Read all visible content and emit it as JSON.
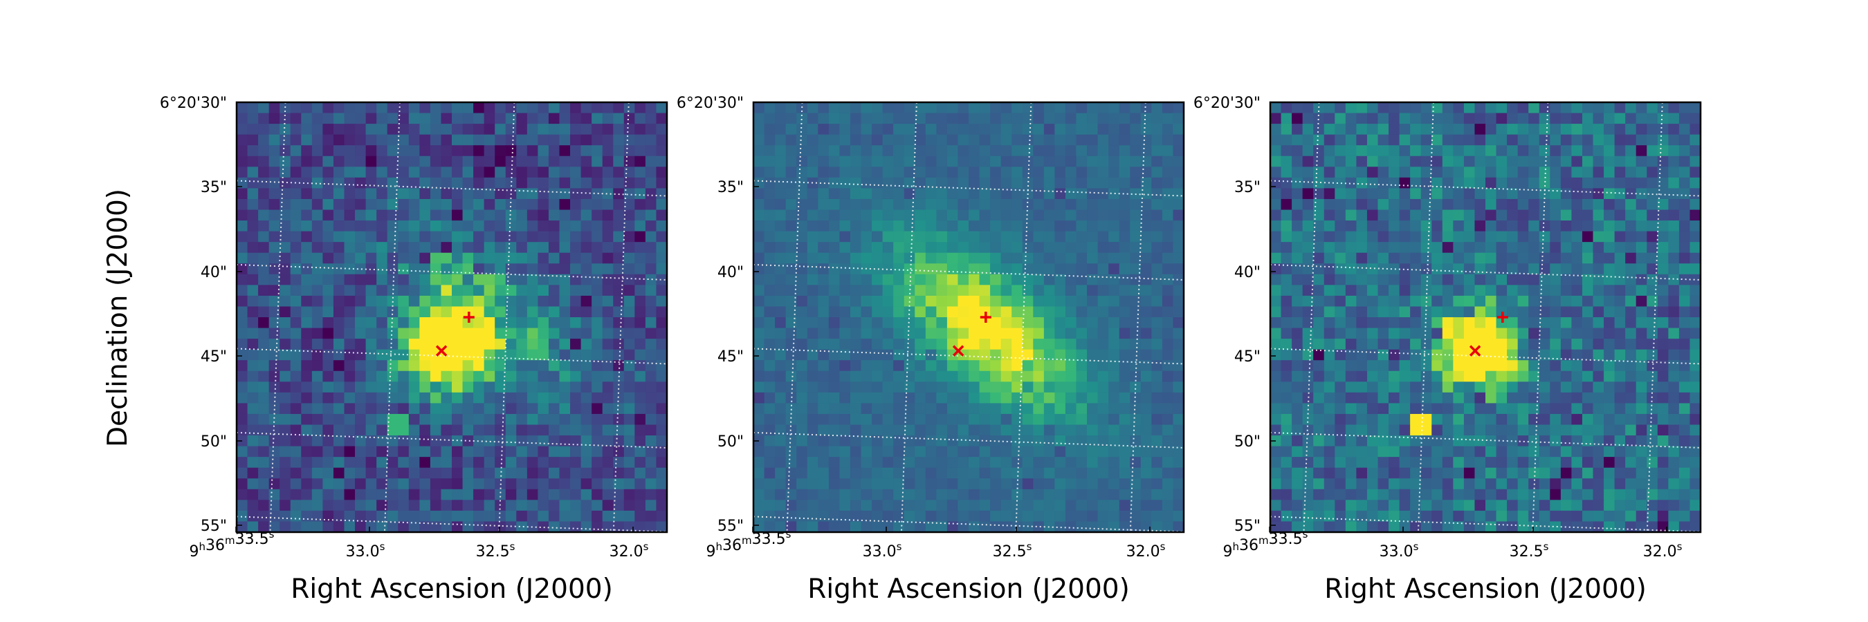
{
  "figure": {
    "ylabel": "Declination (J2000)"
  },
  "chart_data": [
    {
      "type": "heatmap",
      "panel": 1,
      "colormap": "viridis",
      "grid": true,
      "xlabel": "Right Ascension (J2000)",
      "ylabel": "",
      "x_ticks": [
        "9h36m33.5s",
        "33.0s",
        "32.5s",
        "32.0s"
      ],
      "y_ticks": [
        "6°20'30\"",
        "35\"",
        "40\"",
        "45\"",
        "50\"",
        "55\""
      ],
      "features": [
        {
          "type": "source",
          "ra": "9h36m32.80s",
          "dec": "6°20'44.8\"",
          "intensity": 1.0,
          "size_arcsec": 2.0
        },
        {
          "type": "diffuse",
          "ra": "9h36m32.60s",
          "dec": "6°20'42.5\"",
          "intensity": 0.55,
          "orientation": "NE-SW elongated"
        },
        {
          "type": "artifact",
          "ra": "9h36m33.00s",
          "dec": "6°20'49.3\"",
          "intensity": 0.75
        }
      ],
      "markers": [
        {
          "symbol": "x",
          "color": "#e8000b",
          "ra": "9h36m32.80s",
          "dec": "6°20'44.8\""
        },
        {
          "symbol": "+",
          "color": "#e8000b",
          "ra": "9h36m32.68s",
          "dec": "6°20'42.8\""
        }
      ]
    },
    {
      "type": "heatmap",
      "panel": 2,
      "colormap": "viridis",
      "grid": true,
      "xlabel": "Right Ascension (J2000)",
      "ylabel": "",
      "x_ticks": [
        "9h36m33.5s",
        "33.0s",
        "32.5s",
        "32.0s"
      ],
      "y_ticks": [
        "6°20'30\"",
        "35\"",
        "40\"",
        "45\"",
        "50\"",
        "55\""
      ],
      "features": [
        {
          "type": "diffuse",
          "ra": "9h36m32.68s",
          "dec": "6°20'43.5\"",
          "intensity": 0.85,
          "orientation": "NE-SW elongated"
        }
      ],
      "markers": [
        {
          "symbol": "x",
          "color": "#e8000b",
          "ra": "9h36m32.80s",
          "dec": "6°20'44.8\""
        },
        {
          "symbol": "+",
          "color": "#e8000b",
          "ra": "9h36m32.68s",
          "dec": "6°20'42.8\""
        }
      ]
    },
    {
      "type": "heatmap",
      "panel": 3,
      "colormap": "viridis",
      "grid": true,
      "xlabel": "Right Ascension (J2000)",
      "ylabel": "",
      "x_ticks": [
        "9h36m33.5s",
        "33.0s",
        "32.5s",
        "32.0s"
      ],
      "y_ticks": [
        "6°20'30\"",
        "35\"",
        "40\"",
        "45\"",
        "50\"",
        "55\""
      ],
      "features": [
        {
          "type": "source",
          "ra": "9h36m32.80s",
          "dec": "6°20'44.8\"",
          "intensity": 1.0,
          "size_arcsec": 1.8
        },
        {
          "type": "artifact",
          "ra": "9h36m33.05s",
          "dec": "6°20'49.3\"",
          "intensity": 1.0
        }
      ],
      "markers": [
        {
          "symbol": "x",
          "color": "#e8000b",
          "ra": "9h36m32.80s",
          "dec": "6°20'44.8\""
        },
        {
          "symbol": "+",
          "color": "#e8000b",
          "ra": "9h36m32.68s",
          "dec": "6°20'42.8\""
        }
      ]
    }
  ]
}
